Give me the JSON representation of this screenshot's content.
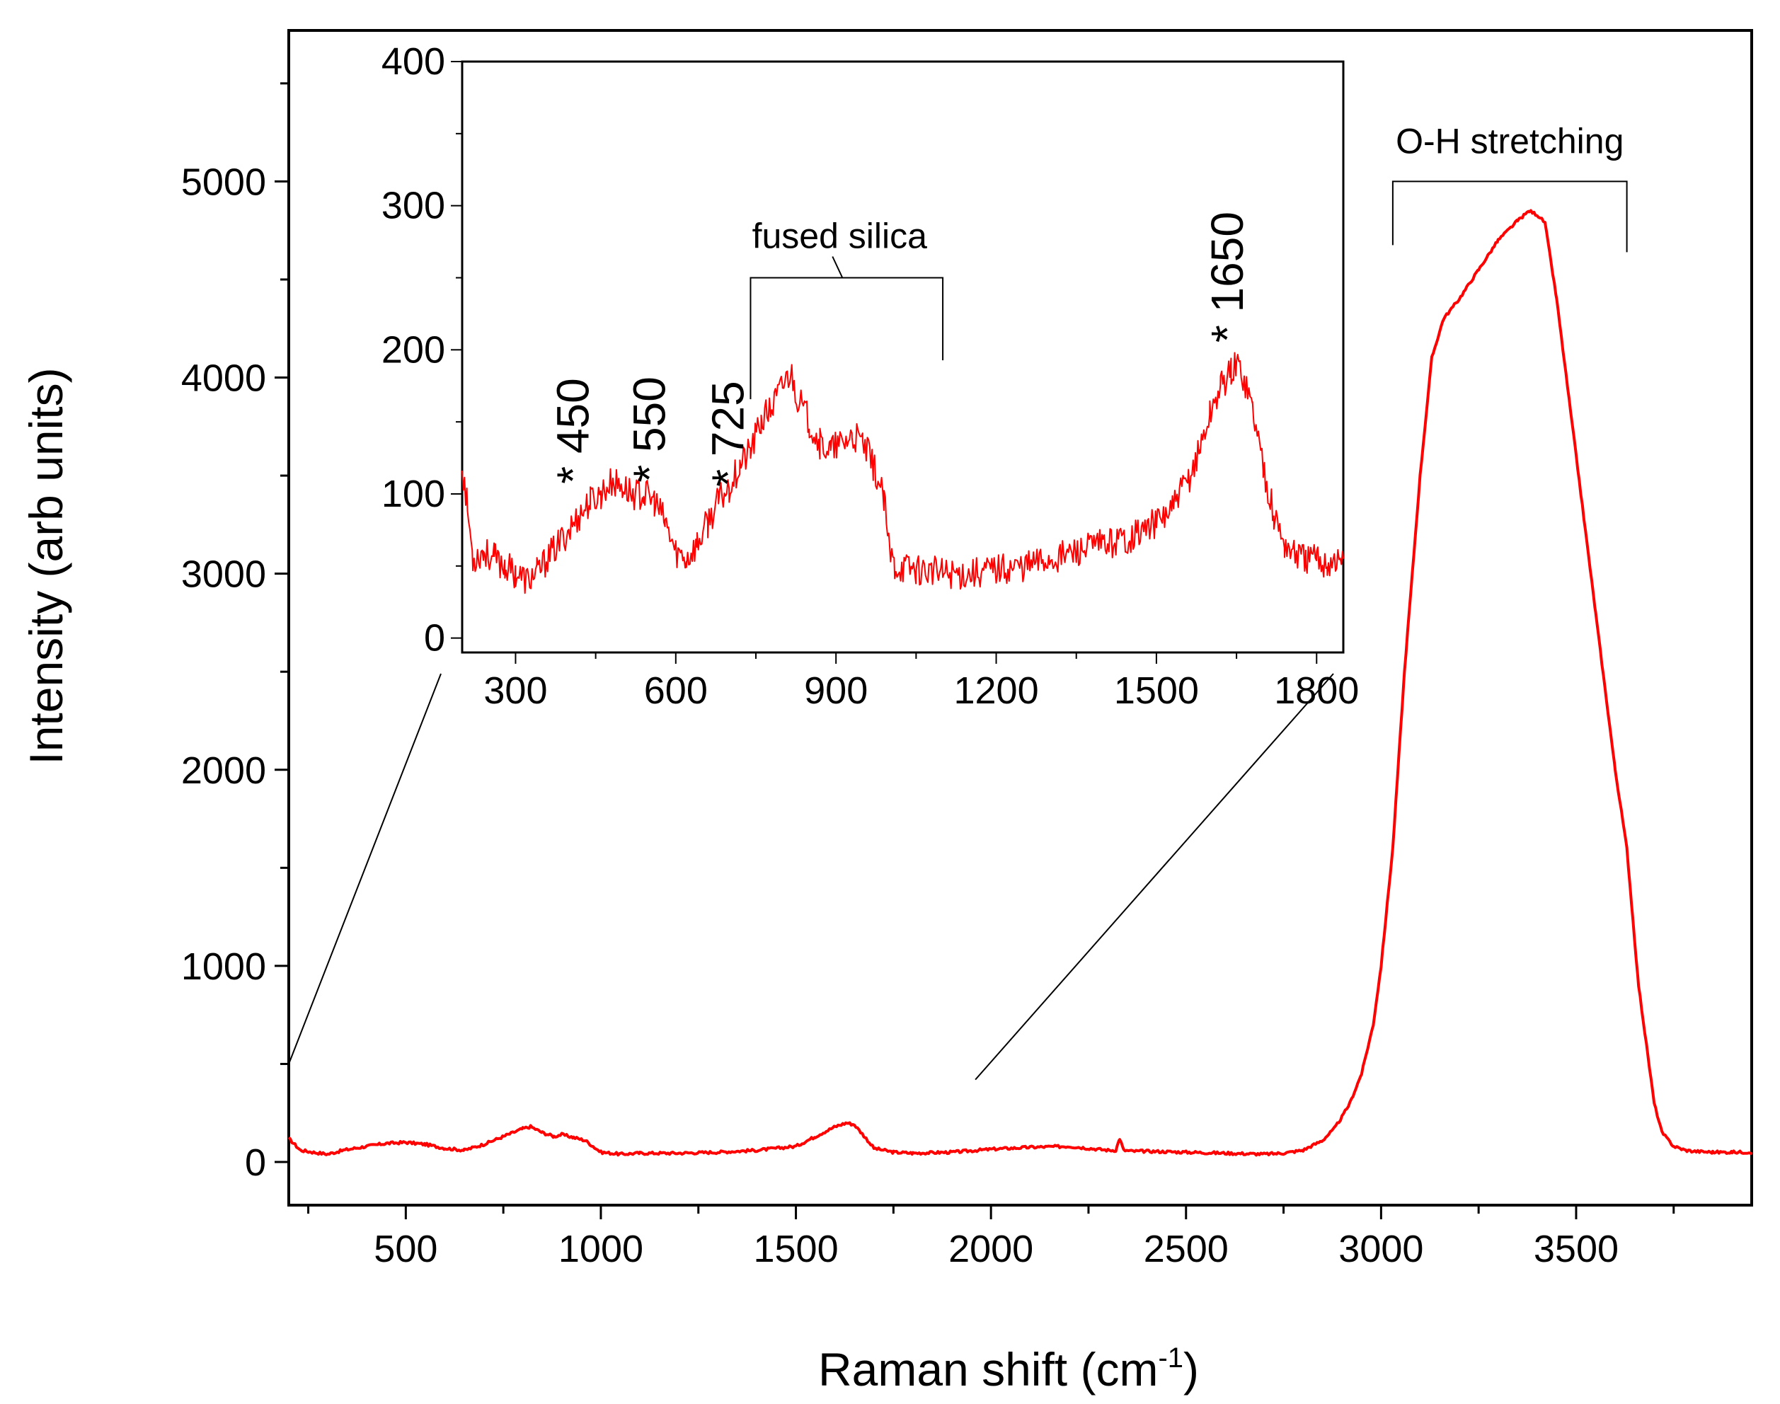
{
  "chart_data": {
    "type": "line",
    "xlabel_main": "Raman shift (cm",
    "xlabel_sup": "-1",
    "xlabel_close": ")",
    "ylabel": "Intensity (arb units)",
    "line_color": "#ff0000",
    "main": {
      "xlim": [
        200,
        3950
      ],
      "ylim": [
        -220,
        5770
      ],
      "xticks": [
        500,
        1000,
        1500,
        2000,
        2500,
        3000,
        3500
      ],
      "yticks": [
        0,
        1000,
        2000,
        3000,
        4000,
        5000
      ],
      "series": {
        "x": [
          200,
          230,
          260,
          300,
          340,
          400,
          450,
          500,
          550,
          600,
          650,
          700,
          750,
          800,
          820,
          850,
          880,
          900,
          930,
          960,
          1000,
          1050,
          1100,
          1200,
          1300,
          1400,
          1500,
          1550,
          1600,
          1630,
          1650,
          1680,
          1700,
          1750,
          1800,
          1900,
          2000,
          2100,
          2200,
          2300,
          2320,
          2330,
          2340,
          2360,
          2400,
          2500,
          2600,
          2700,
          2750,
          2800,
          2850,
          2880,
          2900,
          2920,
          2950,
          2980,
          3000,
          3030,
          3060,
          3100,
          3130,
          3160,
          3200,
          3250,
          3300,
          3350,
          3380,
          3400,
          3420,
          3450,
          3500,
          3550,
          3600,
          3630,
          3660,
          3700,
          3720,
          3750,
          3780,
          3800,
          3850,
          3900,
          3950
        ],
        "y": [
          120,
          60,
          50,
          40,
          60,
          80,
          95,
          100,
          90,
          70,
          60,
          90,
          130,
          170,
          180,
          150,
          130,
          140,
          125,
          110,
          50,
          40,
          45,
          45,
          50,
          60,
          80,
          130,
          180,
          200,
          190,
          120,
          70,
          50,
          45,
          50,
          65,
          75,
          80,
          60,
          60,
          120,
          60,
          55,
          55,
          50,
          45,
          40,
          45,
          60,
          110,
          170,
          230,
          300,
          450,
          700,
          1000,
          1600,
          2500,
          3500,
          4100,
          4300,
          4400,
          4550,
          4700,
          4800,
          4850,
          4830,
          4790,
          4400,
          3600,
          2800,
          2000,
          1600,
          900,
          300,
          150,
          80,
          60,
          55,
          50,
          50,
          50
        ]
      },
      "zoom_connectors": "inset range 200-1850"
    },
    "inset": {
      "xlim": [
        200,
        1850
      ],
      "ylim": [
        -10,
        400
      ],
      "xticks": [
        300,
        600,
        900,
        1200,
        1500,
        1800
      ],
      "yticks": [
        0,
        100,
        200,
        300,
        400
      ],
      "series": {
        "x": [
          200,
          210,
          220,
          240,
          260,
          280,
          300,
          320,
          340,
          360,
          380,
          400,
          420,
          440,
          460,
          480,
          500,
          520,
          540,
          560,
          580,
          600,
          620,
          640,
          660,
          680,
          700,
          720,
          740,
          760,
          780,
          800,
          815,
          830,
          850,
          870,
          890,
          910,
          930,
          950,
          970,
          990,
          1000,
          1010,
          1050,
          1100,
          1150,
          1200,
          1250,
          1300,
          1350,
          1400,
          1450,
          1500,
          1530,
          1560,
          1580,
          1600,
          1620,
          1640,
          1650,
          1660,
          1680,
          1700,
          1720,
          1740,
          1760,
          1780,
          1800,
          1820,
          1850
        ],
        "y": [
          120,
          90,
          55,
          60,
          55,
          50,
          45,
          40,
          45,
          55,
          65,
          75,
          85,
          95,
          100,
          108,
          105,
          100,
          100,
          95,
          80,
          60,
          55,
          65,
          80,
          95,
          105,
          120,
          130,
          150,
          160,
          175,
          185,
          165,
          150,
          135,
          130,
          135,
          140,
          135,
          120,
          95,
          60,
          50,
          48,
          45,
          45,
          48,
          50,
          55,
          60,
          65,
          70,
          80,
          90,
          110,
          130,
          155,
          175,
          185,
          190,
          185,
          160,
          120,
          85,
          65,
          58,
          55,
          55,
          52,
          55
        ]
      },
      "annotations": {
        "fused_silica": "fused silica",
        "fused_silica_range": [
          740,
          1100
        ],
        "peaks": [
          {
            "label": "* 450",
            "x": 410,
            "y": 107
          },
          {
            "label": "* 550",
            "x": 553,
            "y": 108
          },
          {
            "label": "* 725",
            "x": 700,
            "y": 105
          },
          {
            "label": "* 1650",
            "x": 1635,
            "y": 205
          }
        ]
      }
    },
    "oh_label": "O-H stretching",
    "oh_range": [
      3030,
      3630
    ],
    "oh_bracket_y": 5000
  }
}
